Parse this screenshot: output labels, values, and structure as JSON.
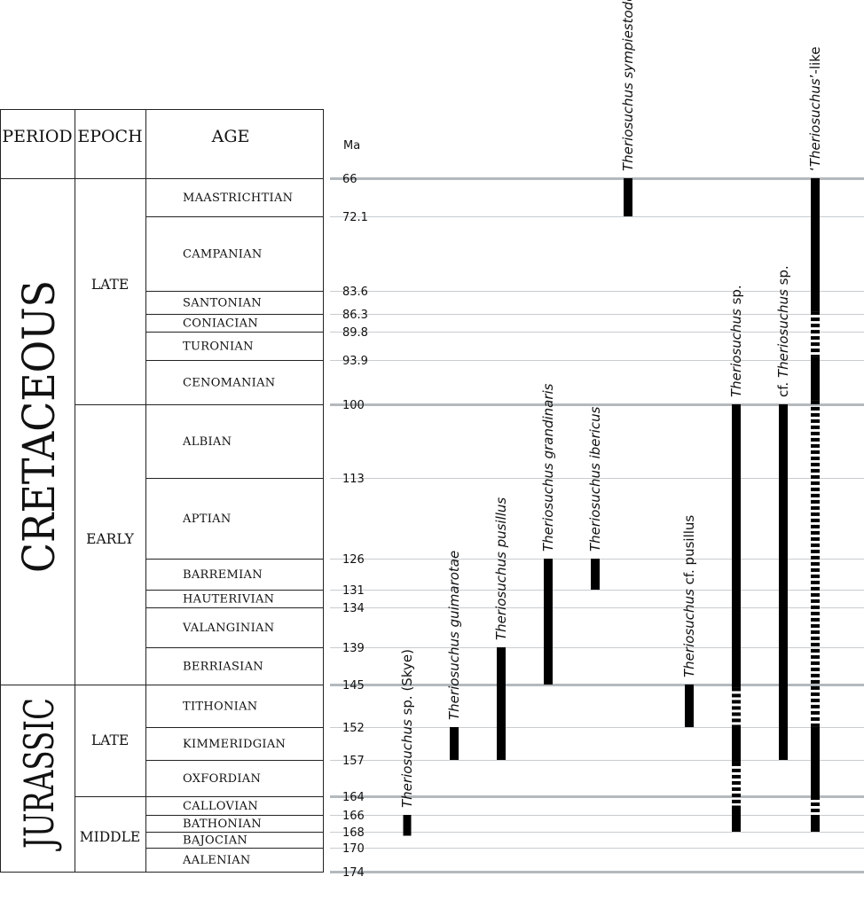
{
  "chart_data": {
    "type": "timeline",
    "axis_label": "Ma",
    "columns": {
      "period": "PERIOD",
      "epoch": "EPOCH",
      "age": "AGE"
    },
    "ticks": [
      66,
      72.1,
      83.6,
      86.3,
      89.8,
      93.9,
      100,
      113,
      126,
      131,
      134,
      139,
      145,
      152,
      157,
      164,
      166,
      168,
      170,
      174
    ],
    "major_ticks": [
      66,
      100,
      145,
      164,
      174
    ],
    "periods": [
      {
        "name": "CRETACEOUS",
        "start": 66,
        "end": 145
      },
      {
        "name": "JURASSIC",
        "start": 145,
        "end": 174
      }
    ],
    "epochs": [
      {
        "name": "LATE",
        "start": 66,
        "end": 100
      },
      {
        "name": "EARLY",
        "start": 100,
        "end": 145
      },
      {
        "name": "LATE",
        "start": 145,
        "end": 164
      },
      {
        "name": "MIDDLE",
        "start": 164,
        "end": 174
      }
    ],
    "stages": [
      {
        "name": "MAASTRICHTIAN",
        "start": 66,
        "end": 72.1
      },
      {
        "name": "CAMPANIAN",
        "start": 72.1,
        "end": 83.6
      },
      {
        "name": "SANTONIAN",
        "start": 83.6,
        "end": 86.3
      },
      {
        "name": "CONIACIAN",
        "start": 86.3,
        "end": 89.8
      },
      {
        "name": "TURONIAN",
        "start": 89.8,
        "end": 93.9
      },
      {
        "name": "CENOMANIAN",
        "start": 93.9,
        "end": 100
      },
      {
        "name": "ALBIAN",
        "start": 100,
        "end": 113
      },
      {
        "name": "APTIAN",
        "start": 113,
        "end": 126
      },
      {
        "name": "BARREMIAN",
        "start": 126,
        "end": 131
      },
      {
        "name": "HAUTERIVIAN",
        "start": 131,
        "end": 134
      },
      {
        "name": "VALANGINIAN",
        "start": 134,
        "end": 139
      },
      {
        "name": "BERRIASIAN",
        "start": 139,
        "end": 145
      },
      {
        "name": "TITHONIAN",
        "start": 145,
        "end": 152
      },
      {
        "name": "KIMMERIDGIAN",
        "start": 152,
        "end": 157
      },
      {
        "name": "OXFORDIAN",
        "start": 157,
        "end": 164
      },
      {
        "name": "CALLOVIAN",
        "start": 164,
        "end": 166
      },
      {
        "name": "BATHONIAN",
        "start": 166,
        "end": 168
      },
      {
        "name": "BAJOCIAN",
        "start": 168,
        "end": 170
      },
      {
        "name": "AALENIAN",
        "start": 170,
        "end": 174
      }
    ],
    "taxa": [
      {
        "italic": "Theriosuchus",
        "rest": " sp. (Skye)",
        "prefix": "",
        "ranges": [
          {
            "start": 166,
            "end": 168.5,
            "style": "solid"
          }
        ]
      },
      {
        "italic": "Theriosuchus guimarotae",
        "rest": "",
        "prefix": "",
        "ranges": [
          {
            "start": 152,
            "end": 157,
            "style": "solid"
          }
        ]
      },
      {
        "italic": "Theriosuchus pusillus",
        "rest": "",
        "prefix": "",
        "ranges": [
          {
            "start": 139,
            "end": 157,
            "style": "solid"
          }
        ]
      },
      {
        "italic": "Theriosuchus grandinaris",
        "rest": "",
        "prefix": "",
        "ranges": [
          {
            "start": 126,
            "end": 145,
            "style": "solid"
          }
        ]
      },
      {
        "italic": "Theriosuchus ibericus",
        "rest": "",
        "prefix": "",
        "ranges": [
          {
            "start": 126,
            "end": 131,
            "style": "solid"
          }
        ]
      },
      {
        "italic": "Theriosuchus sympiestodon",
        "rest": "",
        "prefix": "",
        "ranges": [
          {
            "start": 66,
            "end": 72.1,
            "style": "solid"
          }
        ]
      },
      {
        "italic": "Theriosuchus",
        "rest": " cf. pusillus",
        "prefix": "",
        "ranges": [
          {
            "start": 145,
            "end": 152,
            "style": "solid"
          }
        ]
      },
      {
        "italic": "Theriosuchus",
        "rest": " sp.",
        "prefix": "",
        "ranges": [
          {
            "start": 100,
            "end": 145.5,
            "style": "solid"
          },
          {
            "start": 145.5,
            "end": 152,
            "style": "dashed"
          },
          {
            "start": 152,
            "end": 157.5,
            "style": "solid"
          },
          {
            "start": 157.5,
            "end": 165,
            "style": "dashed"
          },
          {
            "start": 165,
            "end": 168,
            "style": "solid"
          }
        ]
      },
      {
        "italic": "Theriosuchus",
        "rest": " sp.",
        "prefix": "cf. ",
        "ranges": [
          {
            "start": 100,
            "end": 157,
            "style": "solid"
          }
        ]
      },
      {
        "italic": "Theriosuchus",
        "rest": "’-like",
        "prefix": "‘",
        "ranges": [
          {
            "start": 66,
            "end": 86,
            "style": "solid"
          },
          {
            "start": 86,
            "end": 93.5,
            "style": "dashed"
          },
          {
            "start": 93.5,
            "end": 99.5,
            "style": "solid"
          },
          {
            "start": 99.5,
            "end": 152,
            "style": "dashed"
          },
          {
            "start": 152,
            "end": 164,
            "style": "solid"
          },
          {
            "start": 164,
            "end": 166,
            "style": "dashed"
          },
          {
            "start": 166,
            "end": 168,
            "style": "solid"
          }
        ]
      }
    ]
  }
}
